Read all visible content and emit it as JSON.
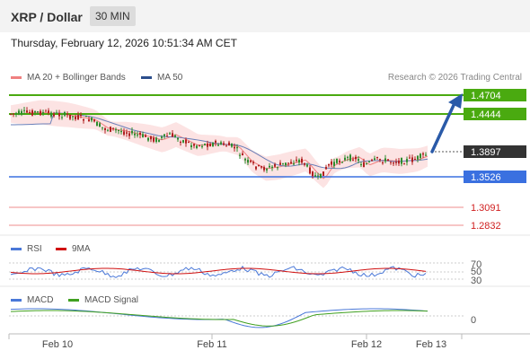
{
  "header": {
    "title": "XRP / Dollar",
    "interval": "30 MIN",
    "datetime": "Thursday, February 12, 2026 10:51:34 AM CET"
  },
  "legend": {
    "ma20_bollinger": "MA 20 + Bollinger Bands",
    "ma50": "MA 50",
    "credit": "Research © 2026 Trading Central",
    "rsi": "RSI",
    "rsi_ma": "9MA",
    "macd": "MACD",
    "macd_signal": "MACD Signal"
  },
  "colors": {
    "up_candle": "#2e8b2e",
    "down_candle": "#b02020",
    "ma20": "#f08080",
    "ma50": "#4060b0",
    "resistance": "#4aaa10",
    "support": "#3a70e0",
    "lower_level": "#e05050",
    "current_price": "#333333",
    "arrow": "#2a5aa8"
  },
  "price_levels": [
    {
      "label": "1.4704",
      "value": 1.4704,
      "kind": "resistance"
    },
    {
      "label": "1.4444",
      "value": 1.4444,
      "kind": "resistance"
    },
    {
      "label": "1.3897",
      "value": 1.3897,
      "kind": "current"
    },
    {
      "label": "1.3526",
      "value": 1.3526,
      "kind": "support"
    },
    {
      "label": "1.3091",
      "value": 1.3091,
      "kind": "lower"
    },
    {
      "label": "1.2832",
      "value": 1.2832,
      "kind": "lower"
    }
  ],
  "rsi_levels": [
    "70",
    "50",
    "30"
  ],
  "macd_zero": "0",
  "x_axis": [
    "Feb 10",
    "Feb 11",
    "Feb 12",
    "Feb 13"
  ]
}
